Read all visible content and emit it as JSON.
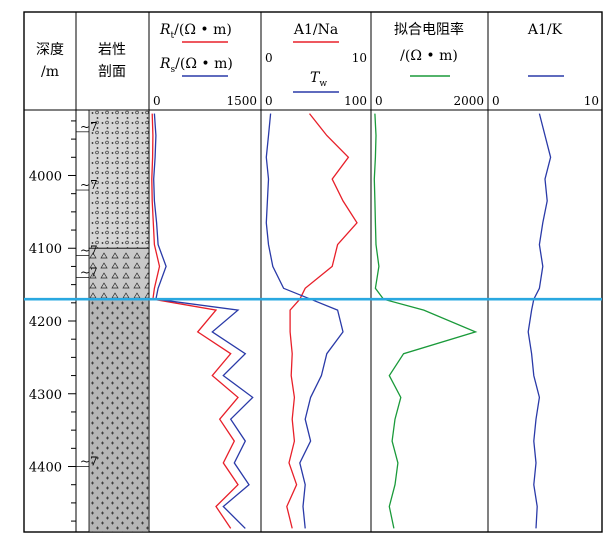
{
  "chart_data": {
    "type": "line",
    "depth_axis": {
      "title_line1": "深度",
      "title_line2": "/m",
      "unit": "m",
      "ticks": [
        4000,
        4100,
        4200,
        4300,
        4400
      ],
      "range": [
        3910,
        4490
      ]
    },
    "lithology": {
      "title_line1": "岩性",
      "title_line2": "剖面",
      "marker": "~7",
      "intervals": [
        {
          "top": 3910,
          "bottom": 4100,
          "pattern": "conglomeratic-sandstone"
        },
        {
          "top": 4100,
          "bottom": 4170,
          "pattern": "breccia"
        },
        {
          "top": 4170,
          "bottom": 4490,
          "pattern": "igneous"
        }
      ]
    },
    "boundary_depth": 4170,
    "tracks": [
      {
        "id": "resistivity",
        "curves": [
          {
            "name": "R_t/(Ω•m)",
            "symbol": "R",
            "sub": "t",
            "unit": "/(Ω • m)",
            "color": "#e8202a"
          },
          {
            "name": "R_s/(Ω•m)",
            "symbol": "R",
            "sub": "s",
            "unit": "/(Ω • m)",
            "color": "#2a3aa8"
          }
        ],
        "scale": {
          "min": 0,
          "max": 1500,
          "min_label": "0",
          "max_label": "1500"
        }
      },
      {
        "id": "al-na",
        "curves": [
          {
            "name": "Al/Na",
            "label": "A1/Na",
            "color": "#e8202a",
            "scale": {
              "min": 0,
              "max": 10,
              "min_label": "0",
              "max_label": "10"
            }
          },
          {
            "name": "T_w",
            "symbol": "T",
            "sub": "w",
            "color": "#2a3aa8",
            "scale": {
              "min": 0,
              "max": 100,
              "min_label": "0",
              "max_label": "100"
            }
          }
        ]
      },
      {
        "id": "fitted-resistivity",
        "curves": [
          {
            "name": "拟合电阻率/(Ω•m)",
            "label": "拟合电阻率",
            "unit": "/(Ω • m)",
            "color": "#1a9a3a",
            "scale": {
              "min": 0,
              "max": 2000,
              "min_label": "0",
              "max_label": "2000"
            }
          }
        ]
      },
      {
        "id": "al-k",
        "curves": [
          {
            "name": "Al/K",
            "label": "A1/K",
            "color": "#2a3aa8",
            "scale": {
              "min": 0,
              "max": 10,
              "min_label": "0",
              "max_label": "10"
            }
          }
        ]
      }
    ],
    "curve_data": {
      "depth": [
        3915,
        3945,
        3975,
        4005,
        4035,
        4065,
        4095,
        4125,
        4155,
        4170,
        4185,
        4215,
        4245,
        4275,
        4305,
        4335,
        4365,
        4395,
        4425,
        4455,
        4485
      ],
      "Rt": [
        30,
        40,
        35,
        25,
        30,
        45,
        60,
        130,
        60,
        40,
        900,
        650,
        1100,
        850,
        1200,
        950,
        1150,
        1000,
        1200,
        900,
        1100
      ],
      "Rs": [
        60,
        80,
        70,
        50,
        60,
        90,
        110,
        220,
        110,
        80,
        1200,
        850,
        1300,
        1000,
        1400,
        1100,
        1300,
        1150,
        1350,
        1000,
        1300
      ],
      "AlNa": [
        4.4,
        6.0,
        8.0,
        6.5,
        7.5,
        8.8,
        7.0,
        6.5,
        4.0,
        3.5,
        2.6,
        2.6,
        2.8,
        2.7,
        3.0,
        2.8,
        3.0,
        2.5,
        3.2,
        2.3,
        2.8
      ],
      "Tw": [
        8,
        6,
        4,
        6,
        5,
        4,
        6,
        10,
        20,
        45,
        70,
        75,
        60,
        55,
        45,
        40,
        45,
        35,
        40,
        38,
        40
      ],
      "fitted": [
        50,
        70,
        60,
        40,
        50,
        60,
        70,
        120,
        60,
        200,
        900,
        1800,
        550,
        300,
        500,
        400,
        350,
        450,
        400,
        300,
        380
      ],
      "AlK": [
        4.5,
        5.0,
        5.5,
        5.0,
        5.2,
        4.8,
        4.5,
        4.8,
        4.5,
        4.0,
        3.8,
        3.5,
        3.8,
        4.0,
        4.5,
        4.2,
        4.0,
        4.2,
        4.0,
        4.3,
        4.2
      ]
    }
  }
}
